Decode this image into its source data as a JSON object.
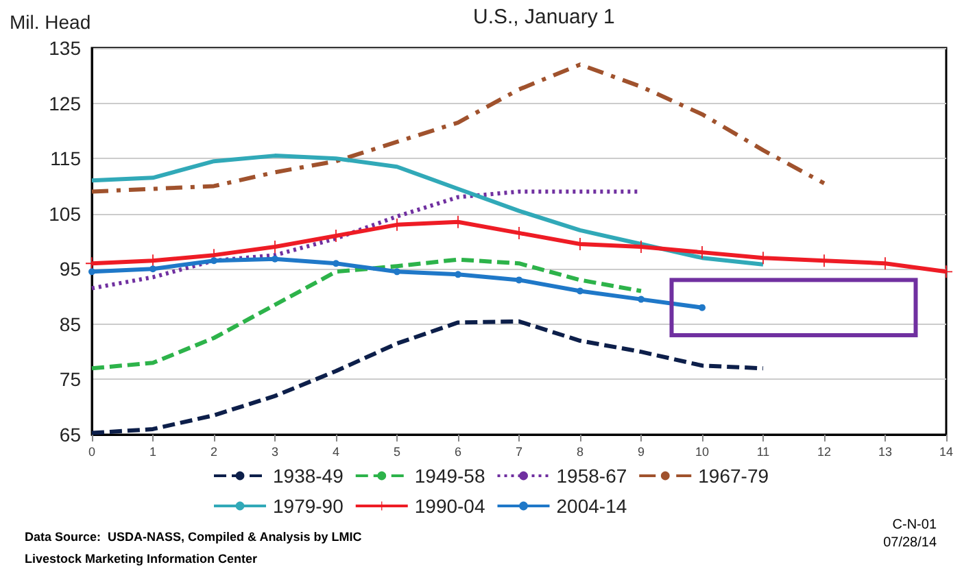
{
  "chart_data": {
    "type": "line",
    "title": "U.S., January 1",
    "ylabel": "Mil. Head",
    "x": [
      0,
      1,
      2,
      3,
      4,
      5,
      6,
      7,
      8,
      9,
      10,
      11,
      12,
      13,
      14
    ],
    "xlim": [
      0,
      14
    ],
    "xticks": [
      0,
      1,
      2,
      3,
      4,
      5,
      6,
      7,
      8,
      9,
      10,
      11,
      12,
      13,
      14
    ],
    "ylim": [
      65,
      135
    ],
    "yticks": [
      65,
      75,
      85,
      95,
      105,
      115,
      125,
      135
    ],
    "grid": "y",
    "legend": "bottom",
    "series": [
      {
        "name": "1938-49",
        "color": "#0d1f4a",
        "line_style": "dashed",
        "marker": "none",
        "values": [
          65.3,
          66,
          68.5,
          72,
          76.5,
          81.5,
          85.3,
          85.5,
          82,
          80,
          77.5,
          77,
          null,
          null,
          null
        ]
      },
      {
        "name": "1949-58",
        "color": "#2db34a",
        "line_style": "dashed",
        "marker": "none",
        "values": [
          77,
          78,
          82.5,
          88.5,
          94.5,
          95.5,
          96.7,
          96,
          93,
          91,
          null,
          null,
          null,
          null,
          null
        ]
      },
      {
        "name": "1958-67",
        "color": "#7030a0",
        "line_style": "dotted",
        "marker": "none",
        "values": [
          91.5,
          93.5,
          96.5,
          97.5,
          100.5,
          104.5,
          108,
          109,
          109,
          109,
          null,
          null,
          null,
          null,
          null
        ]
      },
      {
        "name": "1967-79",
        "color": "#a0522d",
        "line_style": "dashdot",
        "marker": "none",
        "values": [
          109,
          109.5,
          110,
          112.5,
          114.5,
          118,
          121.5,
          127.5,
          132,
          128,
          123,
          116.5,
          110.5,
          null,
          null
        ]
      },
      {
        "name": "1979-90",
        "color": "#31a9b8",
        "line_style": "solid",
        "marker": "none",
        "values": [
          111,
          111.5,
          114.5,
          115.5,
          115,
          113.5,
          109.5,
          105.5,
          102,
          99.5,
          97,
          95.8,
          null,
          null,
          null
        ]
      },
      {
        "name": "1990-04",
        "color": "#ee1c25",
        "line_style": "solid",
        "marker": "cross",
        "values": [
          96,
          96.5,
          97.5,
          99,
          101,
          103,
          103.5,
          101.5,
          99.5,
          99,
          98,
          97,
          96.5,
          96,
          94.5
        ]
      },
      {
        "name": "2004-14",
        "color": "#1f78c8",
        "line_style": "solid",
        "marker": "circle",
        "values": [
          94.5,
          95,
          96.5,
          96.8,
          96,
          94.5,
          94,
          93,
          91,
          89.5,
          88,
          null,
          null,
          null,
          null
        ]
      }
    ],
    "annotations": [
      "Data Source:  USDA-NASS, Compiled & Analysis by LMIC",
      "Livestock Marketing Information Center",
      "C-N-01",
      "07/28/14"
    ]
  }
}
